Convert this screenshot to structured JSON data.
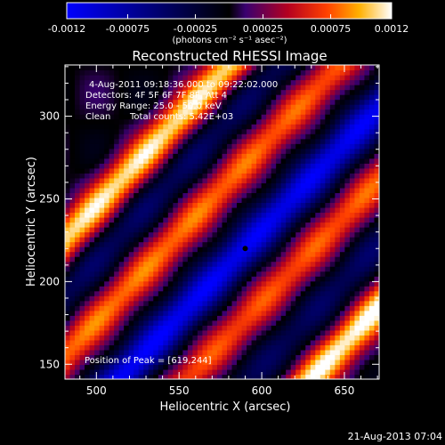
{
  "chart_data": {
    "type": "heatmap",
    "title": "Reconstructed RHESSI Image",
    "xlabel": "Heliocentric X (arcsec)",
    "ylabel": "Heliocentric Y (arcsec)",
    "xlim": [
      481,
      671
    ],
    "ylim": [
      141,
      331
    ],
    "x_ticks": [
      500,
      550,
      600,
      650
    ],
    "y_ticks": [
      150,
      200,
      250,
      300
    ],
    "colorbar": {
      "range": [
        -0.0012,
        0.0012
      ],
      "ticks": [
        "-0.0012",
        "-0.00075",
        "-0.00025",
        "0.00025",
        "0.00075",
        "0.0012"
      ],
      "tick_values": [
        -0.0012,
        -0.00075,
        -0.00025,
        0.00025,
        0.00075,
        0.0012
      ],
      "units": "(photons cm⁻² s⁻¹ asec⁻²)"
    },
    "annotations": {
      "time_range": "4-Aug-2011 09:18:36.000 to 09:22:02.000",
      "detectors": "Detectors: 4F 5F 6F 7F 8F, Att 4",
      "energy_range": "Energy Range: 25.0 - 50.0 keV",
      "algorithm": "Clean",
      "total_counts": "Total counts: 5.42E+03",
      "peak_position": "Position of Peak = [619,244]"
    },
    "marker": {
      "x": 590,
      "y": 220
    },
    "timestamp": "21-Aug-2013 07:04",
    "structure": {
      "pattern": "diagonal bands, lower-left to upper-right",
      "bands": [
        {
          "offset": -115,
          "amplitude": 0.0012
        },
        {
          "offset": -76,
          "amplitude": -0.00045
        },
        {
          "offset": -38,
          "amplitude": 0.0008
        },
        {
          "offset": 5,
          "amplitude": -0.0012
        },
        {
          "offset": 55,
          "amplitude": 0.0008
        },
        {
          "offset": 92,
          "amplitude": -0.0004
        },
        {
          "offset": 125,
          "amplitude": 0.0011
        }
      ]
    }
  }
}
